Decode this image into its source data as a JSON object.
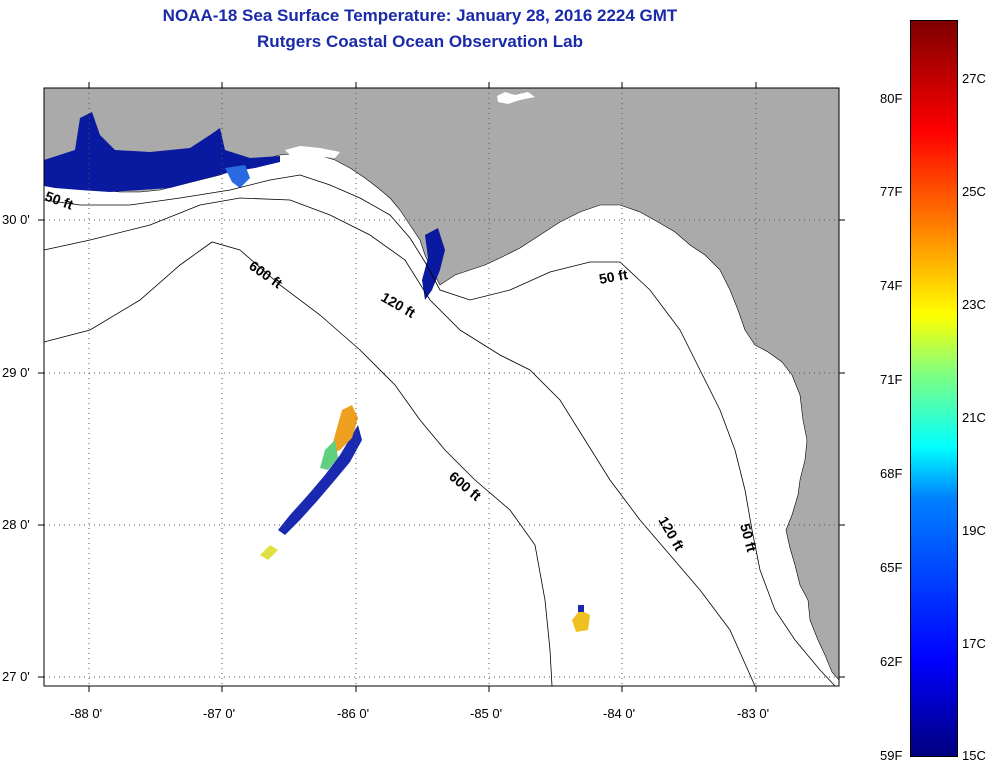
{
  "title": "NOAA-18 Sea Surface Temperature:  January 28, 2016 2224 GMT",
  "subtitle": "Rutgers Coastal Ocean Observation Lab",
  "lon_ticks": [
    "-88 0'",
    "-87 0'",
    "-86 0'",
    "-85 0'",
    "-84 0'",
    "-83 0'"
  ],
  "lat_ticks": [
    "30 0'",
    "29 0'",
    "28 0'",
    "27 0'"
  ],
  "contour_labels": {
    "c50_west": "50 ft",
    "c50_east": "50 ft",
    "c50_south": "50 ft",
    "c120_north": "120 ft",
    "c120_south": "120 ft",
    "c600_north": "600 ft",
    "c600_south": "600 ft"
  },
  "colorbar": {
    "fahrenheit": [
      "80F",
      "77F",
      "74F",
      "71F",
      "68F",
      "65F",
      "62F",
      "59F"
    ],
    "celsius": [
      "27C",
      "25C",
      "23C",
      "21C",
      "19C",
      "17C",
      "15C"
    ]
  },
  "colors": {
    "land": "#aaaaaa",
    "ocean": "#ffffff",
    "title": "#1a2aa8"
  }
}
